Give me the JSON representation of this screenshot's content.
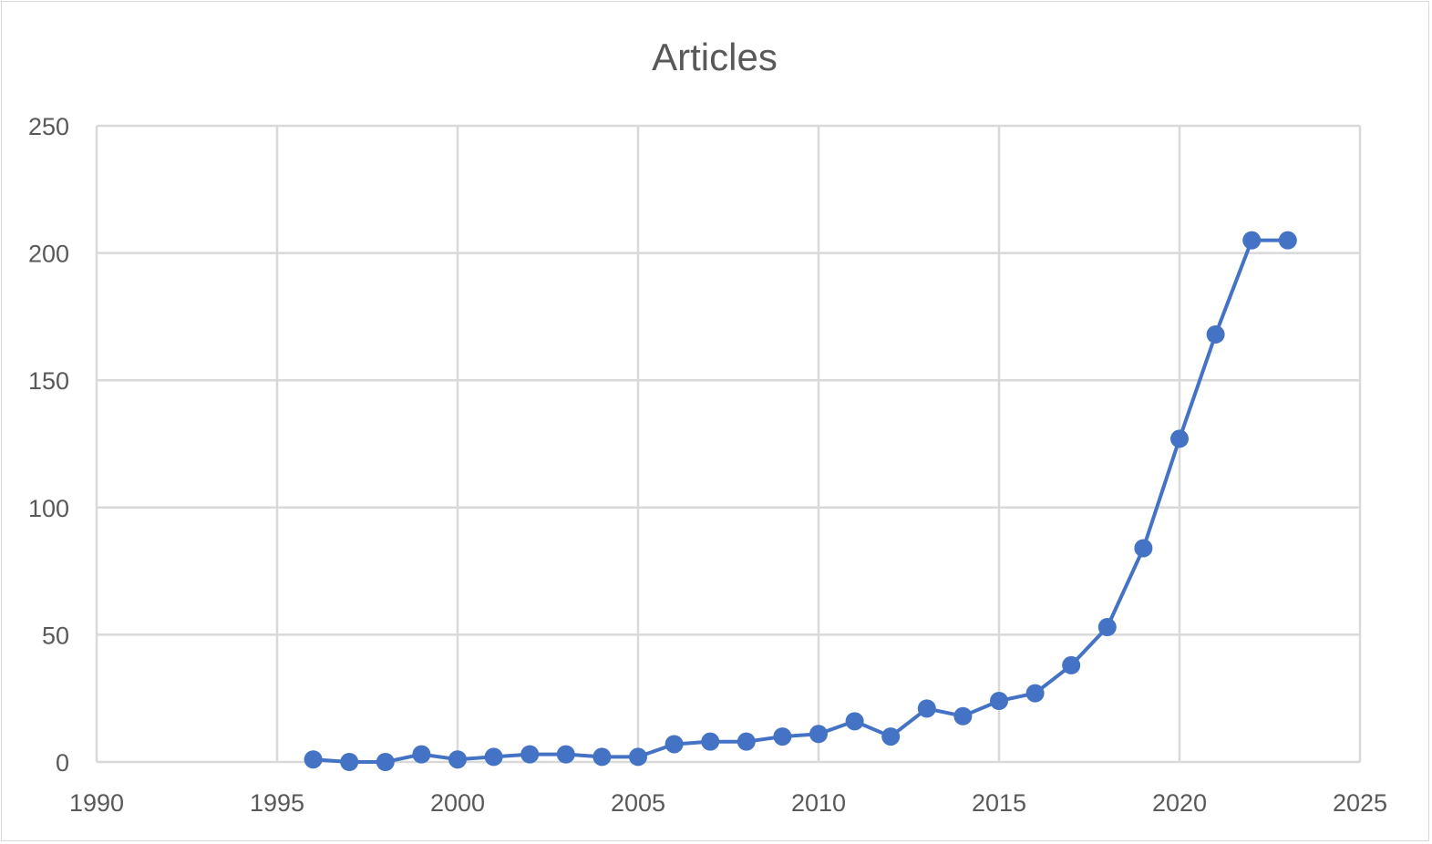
{
  "chart_data": {
    "type": "scatter",
    "mode": "lines+markers",
    "title": "Articles",
    "xlabel": "",
    "ylabel": "",
    "xlim": [
      1990,
      2025
    ],
    "ylim": [
      0,
      250
    ],
    "xticks": [
      1990,
      1995,
      2000,
      2005,
      2010,
      2015,
      2020,
      2025
    ],
    "yticks": [
      0,
      50,
      100,
      150,
      200,
      250
    ],
    "grid": true,
    "legend": "none",
    "color": "#4472c4",
    "series": [
      {
        "x": [
          1996,
          1997,
          1998,
          1999,
          2000,
          2001,
          2002,
          2003,
          2004,
          2005,
          2006,
          2007,
          2008,
          2009,
          2010,
          2011,
          2012,
          2013,
          2014,
          2015,
          2016,
          2017,
          2018,
          2019,
          2020,
          2021,
          2022,
          2023
        ],
        "y": [
          1,
          0,
          0,
          3,
          1,
          2,
          3,
          3,
          2,
          2,
          7,
          8,
          8,
          10,
          11,
          16,
          10,
          21,
          18,
          24,
          27,
          38,
          53,
          84,
          127,
          168,
          205,
          205
        ]
      }
    ]
  }
}
